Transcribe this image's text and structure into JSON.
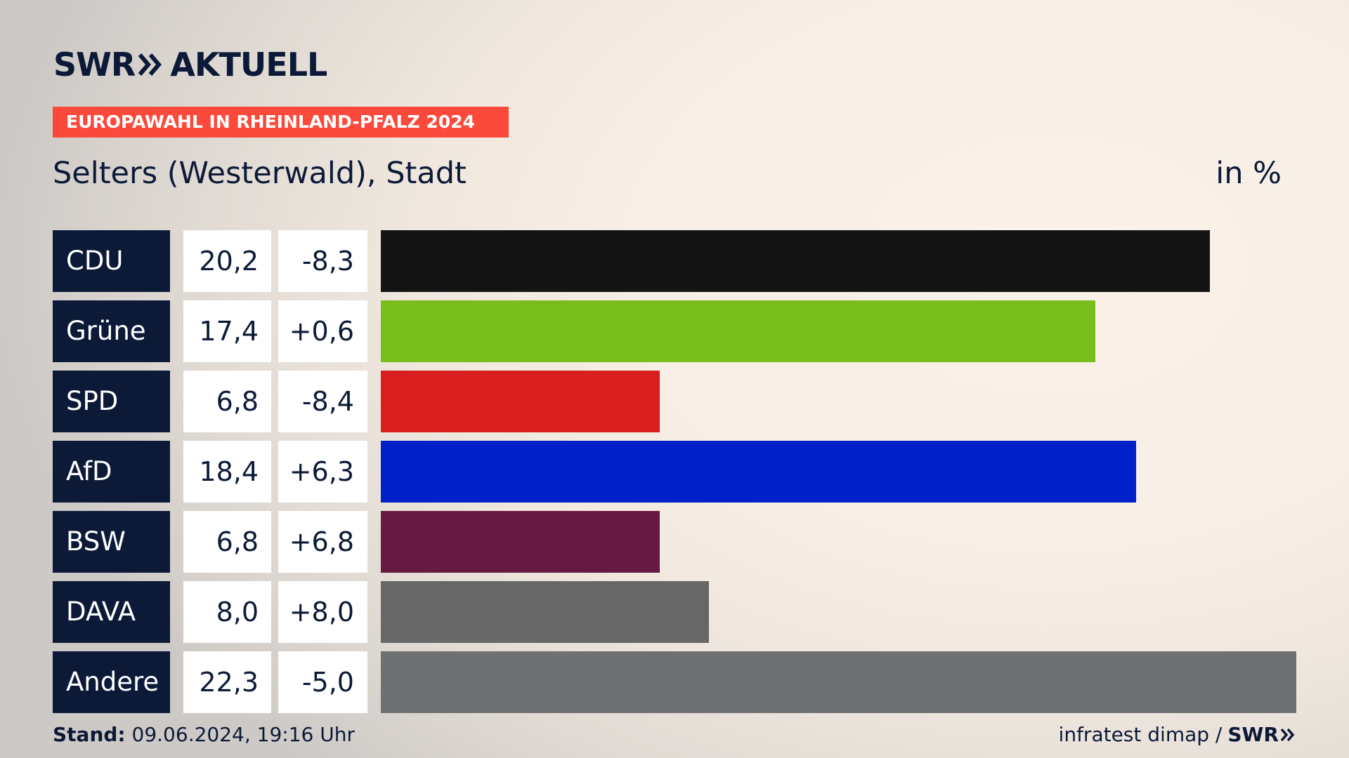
{
  "logo": {
    "left": "SWR",
    "right": "AKTUELL"
  },
  "banner": "EUROPAWAHL IN RHEINLAND-PFALZ 2024",
  "subtitle": "Selters (Westerwald), Stadt",
  "unit_label": "in %",
  "chart_data": {
    "type": "bar",
    "orientation": "horizontal",
    "categories": [
      "CDU",
      "Grüne",
      "SPD",
      "AfD",
      "BSW",
      "DAVA",
      "Andere"
    ],
    "values": [
      20.2,
      17.4,
      6.8,
      18.4,
      6.8,
      8.0,
      22.3
    ],
    "value_labels": [
      "20,2",
      "17,4",
      "6,8",
      "18,4",
      "6,8",
      "8,0",
      "22,3"
    ],
    "diff_labels": [
      "-8,3",
      "+0,6",
      "-8,4",
      "+6,3",
      "+6,8",
      "+8,0",
      "-5,0"
    ],
    "colors": [
      "#141414",
      "#78bd1c",
      "#d81e1e",
      "#0021c8",
      "#661a41",
      "#676767",
      "#6f7072"
    ],
    "xlim": [
      0,
      22.3
    ],
    "grid": false
  },
  "footer": {
    "stand_label": "Stand:",
    "stand_value": "09.06.2024, 19:16 Uhr",
    "source": "infratest dimap /",
    "source_logo": "SWR"
  }
}
